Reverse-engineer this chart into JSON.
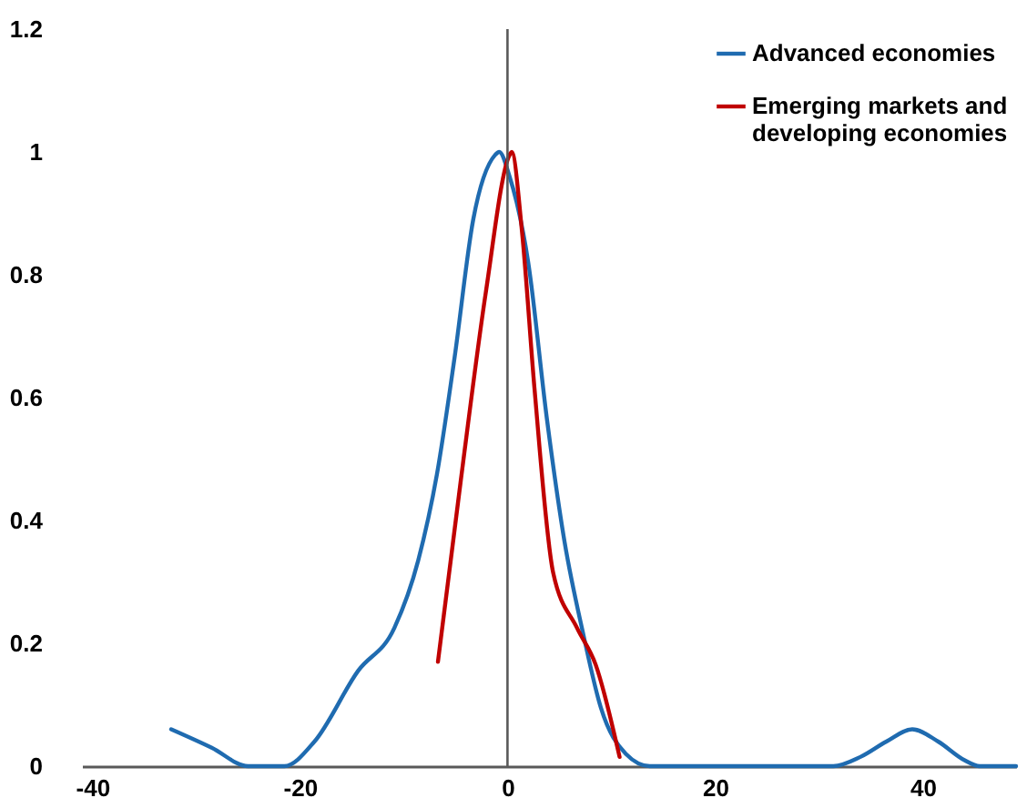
{
  "chart_data": {
    "type": "line",
    "xlim": [
      -41,
      49
    ],
    "xticks": [
      -40,
      -20,
      0,
      20,
      40
    ],
    "ylim": [
      0,
      1.2
    ],
    "yticks": [
      0,
      0.2,
      0.4,
      0.6,
      0.8,
      1,
      1.2
    ],
    "grid": false,
    "legend": "top right",
    "line_style": "solid",
    "ref_lines": [
      {
        "axis": "x",
        "value": 0,
        "color": "#595959"
      }
    ],
    "series": [
      {
        "name": "Advanced economies",
        "color": "#1f6bb0",
        "x": [
          -32.4,
          -28.5,
          -25,
          -21.5,
          -18.6,
          -14.4,
          -10.9,
          -8.6,
          -6.8,
          -5.1,
          -3.3,
          -1.2,
          -0.8,
          0.2,
          2.0,
          3.8,
          5.5,
          7.3,
          9.0,
          11.4,
          13.7,
          20,
          31.4,
          34,
          36.5,
          39,
          41.5,
          44,
          45.5,
          49
        ],
        "values": [
          0.06,
          0.03,
          0.0,
          0.0,
          0.04,
          0.155,
          0.225,
          0.335,
          0.475,
          0.665,
          0.89,
          0.995,
          1.0,
          0.96,
          0.82,
          0.565,
          0.365,
          0.215,
          0.095,
          0.02,
          0.0,
          0.0,
          0.0,
          0.015,
          0.04,
          0.06,
          0.04,
          0.01,
          0.0,
          0.0
        ]
      },
      {
        "name": "Emerging markets and developing economies",
        "color": "#c00000",
        "x": [
          -6.7,
          -4.5,
          -2.1,
          0.2,
          0.4,
          1.4,
          2.6,
          4.4,
          6.7,
          8.5,
          10.8
        ],
        "values": [
          0.17,
          0.465,
          0.77,
          0.995,
          1.0,
          0.87,
          0.615,
          0.315,
          0.225,
          0.165,
          0.015
        ]
      }
    ]
  }
}
